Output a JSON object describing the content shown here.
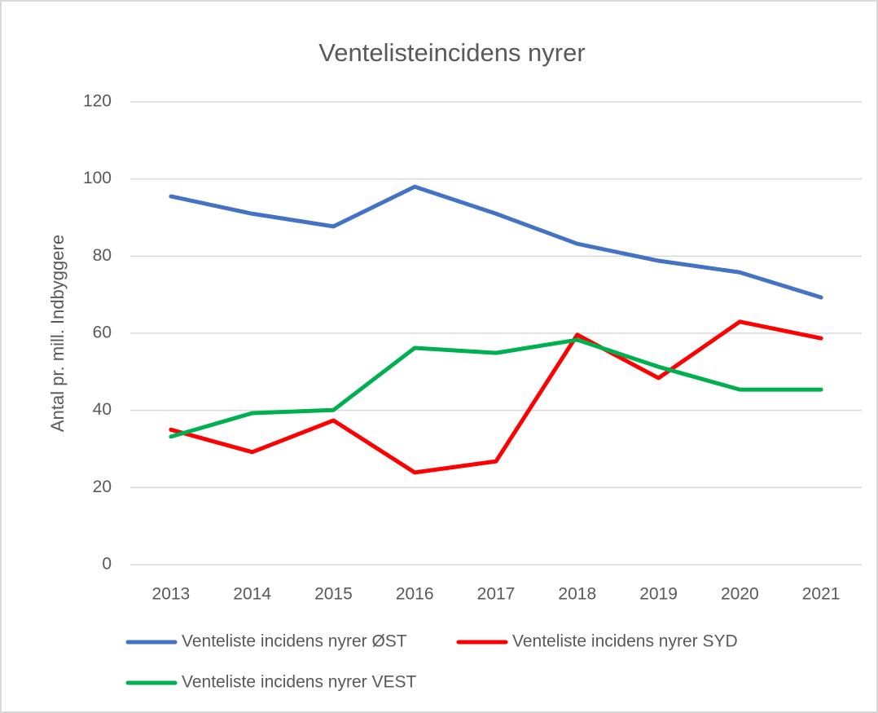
{
  "chart_data": {
    "type": "line",
    "title": "Ventelisteincidens nyrer",
    "y_label": "Antal pr. mill. Indbyggere",
    "categories": [
      "2013",
      "2014",
      "2015",
      "2016",
      "2017",
      "2018",
      "2019",
      "2020",
      "2021"
    ],
    "series": [
      {
        "name": "Venteliste incidens nyrer ØST",
        "color": "#4472c4",
        "values": [
          95.5,
          91,
          87.7,
          98,
          91,
          83.2,
          78.8,
          75.8,
          69.3
        ]
      },
      {
        "name": "Venteliste incidens nyrer SYD",
        "color": "#ff0000",
        "values": [
          35,
          29.2,
          37.4,
          23.9,
          26.8,
          59.6,
          48.4,
          63,
          58.7
        ]
      },
      {
        "name": "Venteliste incidens nyrer VEST",
        "color": "#00b050",
        "values": [
          33.2,
          39.3,
          40.1,
          56.2,
          54.9,
          58.3,
          51.3,
          45.4,
          45.4
        ]
      }
    ],
    "ylim": [
      0,
      120
    ],
    "yticks": [
      0,
      20,
      40,
      60,
      80,
      100,
      120
    ],
    "grid": true,
    "legend": "bottom"
  }
}
